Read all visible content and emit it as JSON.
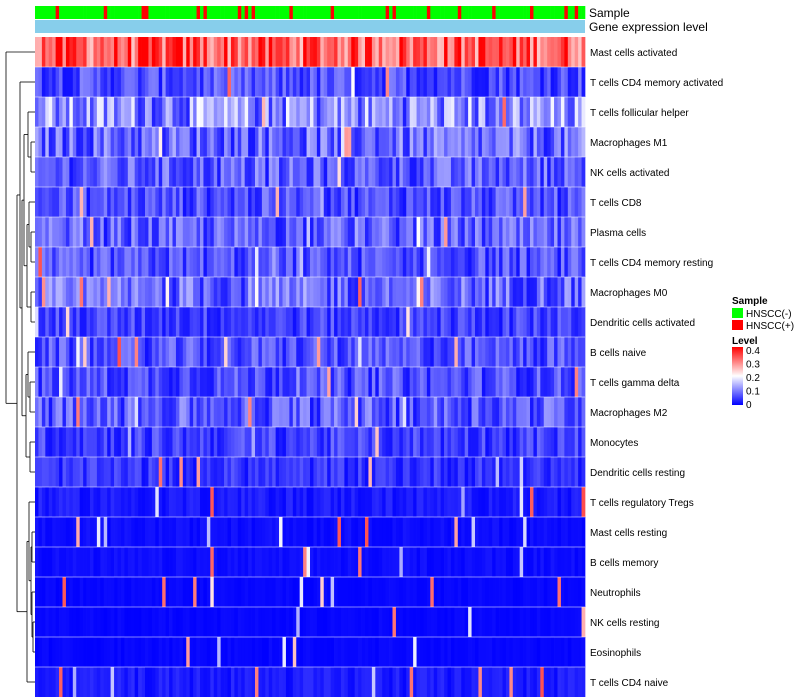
{
  "chart_data": {
    "type": "heatmap",
    "annotations": {
      "sample_label": "Sample",
      "expression_label": "Gene expression level"
    },
    "rows": [
      {
        "label": "Mast cells activated",
        "mean": 0.33
      },
      {
        "label": "T cells CD4 memory activated",
        "mean": 0.06
      },
      {
        "label": "T cells follicular helper",
        "mean": 0.11
      },
      {
        "label": "Macrophages M1",
        "mean": 0.08
      },
      {
        "label": "NK cells activated",
        "mean": 0.07
      },
      {
        "label": "T cells CD8",
        "mean": 0.06
      },
      {
        "label": "Plasma cells",
        "mean": 0.07
      },
      {
        "label": "T cells CD4 memory resting",
        "mean": 0.06
      },
      {
        "label": "Macrophages M0",
        "mean": 0.08
      },
      {
        "label": "Dendritic cells activated",
        "mean": 0.05
      },
      {
        "label": "B cells naive",
        "mean": 0.06
      },
      {
        "label": "T cells gamma delta",
        "mean": 0.06
      },
      {
        "label": "Macrophages M2",
        "mean": 0.07
      },
      {
        "label": "Monocytes",
        "mean": 0.05
      },
      {
        "label": "Dendritic cells resting",
        "mean": 0.04
      },
      {
        "label": "T cells regulatory  Tregs",
        "mean": 0.02
      },
      {
        "label": "Mast cells resting",
        "mean": 0.01
      },
      {
        "label": "B cells memory",
        "mean": 0.01
      },
      {
        "label": "Neutrophils",
        "mean": 0.005
      },
      {
        "label": "NK cells resting",
        "mean": 0.005
      },
      {
        "label": "Eosinophils",
        "mean": 0.003
      },
      {
        "label": "T cells CD4 naive",
        "mean": 0.02
      }
    ],
    "n_samples": 160,
    "fraction_hnscc_positive": 0.18,
    "color_scale": {
      "min": 0,
      "mid": 0.2,
      "max": 0.4,
      "low": "#0000ff",
      "midcolor": "#ffffff",
      "high": "#ff0000"
    },
    "legend": {
      "sample_title": "Sample",
      "sample_items": [
        {
          "label": "HNSCC(-)",
          "color": "#00ff00"
        },
        {
          "label": "HNSCC(+)",
          "color": "#ff0000"
        }
      ],
      "level_title": "Level",
      "level_ticks": [
        "0.4",
        "0.3",
        "0.2",
        "0.1",
        "0"
      ]
    },
    "annotation_colors": {
      "expression_bar": "#87ceeb"
    }
  }
}
